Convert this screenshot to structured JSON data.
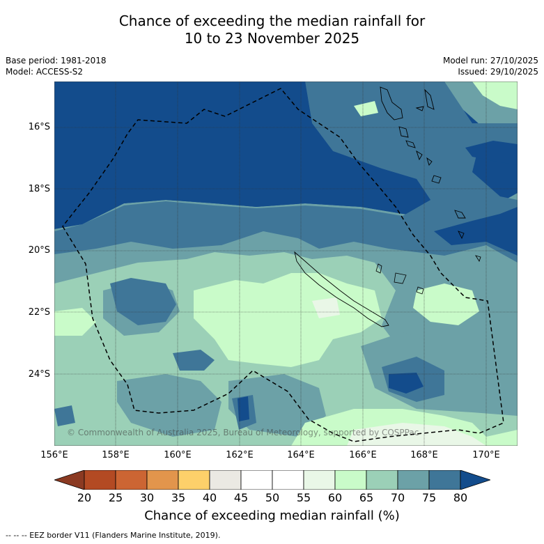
{
  "title": {
    "line1": "Chance of exceeding the median rainfall for",
    "line2": "10 to 23 November 2025"
  },
  "meta": {
    "base_period": "Base period: 1981-2018",
    "model": "Model: ACCESS-S2",
    "model_run": "Model run: 27/10/2025",
    "issued": "Issued: 29/10/2025"
  },
  "map": {
    "latitudes": [
      "16°S",
      "18°S",
      "20°S",
      "22°S",
      "24°S"
    ],
    "longitudes": [
      "156°E",
      "158°E",
      "160°E",
      "162°E",
      "164°E",
      "166°E",
      "168°E",
      "170°E"
    ],
    "copyright": "© Commonwealth of Australia 2025, Bureau of Meteorology, supported by COSPPac",
    "eez_legend": "--  --  -- EEZ border V11 (Flanders Marine Institute, 2019)."
  },
  "colorbar": {
    "label": "Chance of exceeding median rainfall (%)",
    "ticks": [
      "20",
      "25",
      "30",
      "35",
      "40",
      "45",
      "50",
      "55",
      "60",
      "65",
      "70",
      "75",
      "80"
    ],
    "under_color": "#8b3a22",
    "over_color": "#134c8c",
    "colors": [
      "#b34a23",
      "#cc6533",
      "#e2954c",
      "#fdd06a",
      "#ebe9e3",
      "#ffffff",
      "#ffffff",
      "#e9f7e7",
      "#c9fbc9",
      "#9bd0b7",
      "#6ca1a7",
      "#3f7698"
    ]
  },
  "palette": {
    "c55_60": "#e9f7e7",
    "c60_65": "#c9fbc9",
    "c65_70": "#9bd0b7",
    "c70_75": "#6ca1a7",
    "c75_80": "#3f7698",
    "c80_plus": "#134c8c"
  }
}
